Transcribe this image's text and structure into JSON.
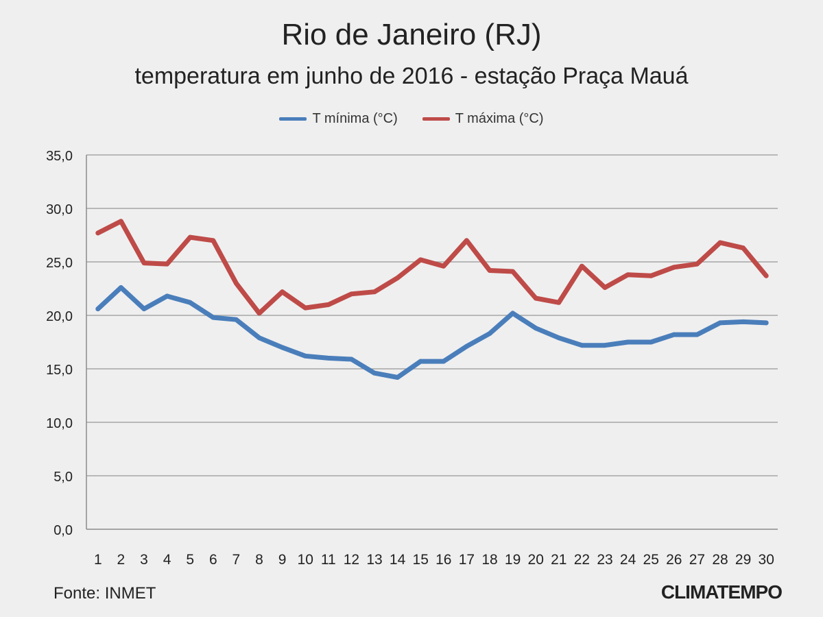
{
  "chart_data": {
    "type": "line",
    "title": "Rio de Janeiro (RJ)",
    "subtitle": "temperatura em junho de 2016 - estação Praça Mauá",
    "categories": [
      "1",
      "2",
      "3",
      "4",
      "5",
      "6",
      "7",
      "8",
      "9",
      "10",
      "11",
      "12",
      "13",
      "14",
      "15",
      "16",
      "17",
      "18",
      "19",
      "20",
      "21",
      "22",
      "23",
      "24",
      "25",
      "26",
      "27",
      "28",
      "29",
      "30"
    ],
    "ylim": [
      0,
      35
    ],
    "yticks": [
      "0,0",
      "5,0",
      "10,0",
      "15,0",
      "20,0",
      "25,0",
      "30,0",
      "35,0"
    ],
    "grid": true,
    "legend_position": "top",
    "series": [
      {
        "name": "T mínima (°C)",
        "color": "#4a7ebb",
        "values": [
          20.6,
          22.6,
          20.6,
          21.8,
          21.2,
          19.8,
          19.6,
          17.9,
          17.0,
          16.2,
          16.0,
          15.9,
          14.6,
          14.2,
          15.7,
          15.7,
          17.1,
          18.3,
          20.2,
          18.8,
          17.9,
          17.2,
          17.2,
          17.5,
          17.5,
          18.2,
          18.2,
          19.3,
          19.4,
          19.3
        ]
      },
      {
        "name": "T máxima (°C)",
        "color": "#be4b48",
        "values": [
          27.7,
          28.8,
          24.9,
          24.8,
          27.3,
          27.0,
          23.0,
          20.2,
          22.2,
          20.7,
          21.0,
          22.0,
          22.2,
          23.5,
          25.2,
          24.6,
          27.0,
          24.2,
          24.1,
          21.6,
          21.2,
          24.6,
          22.6,
          23.8,
          23.7,
          24.5,
          24.8,
          26.8,
          26.3,
          23.7
        ]
      }
    ]
  },
  "footer": {
    "source": "Fonte: INMET",
    "brand": "CLIMATEMPO"
  }
}
